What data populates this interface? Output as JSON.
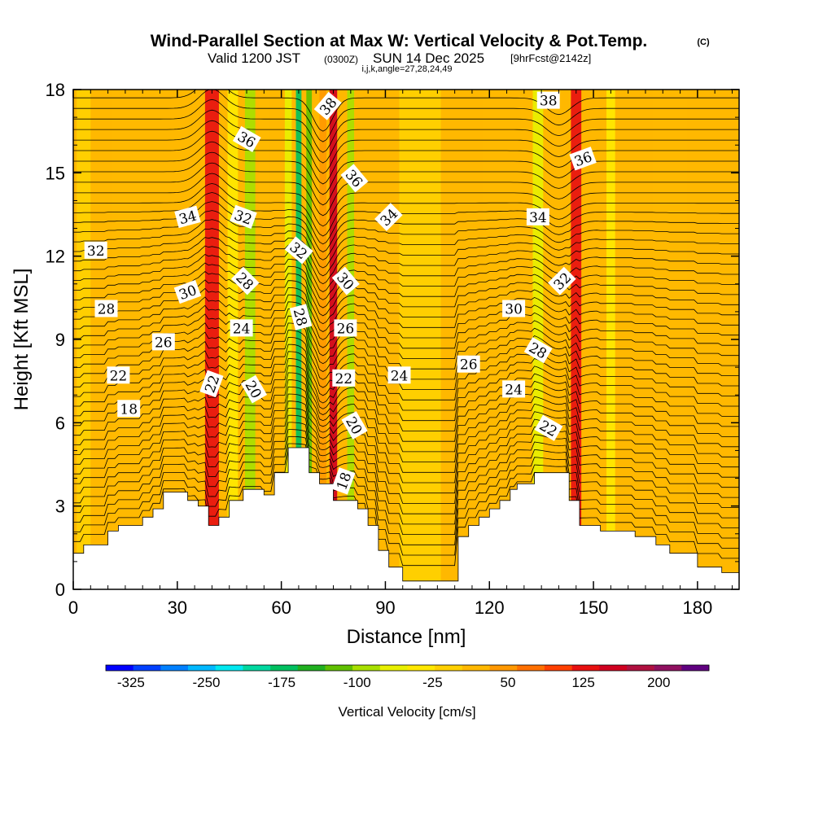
{
  "title": "Wind-Parallel Section at Max W: Vertical Velocity & Pot.Temp.",
  "copyright": "(C)",
  "subtitle_valid": "Valid 1200 JST",
  "subtitle_z": "(0300Z)",
  "subtitle_date": "SUN 14 Dec 2025",
  "subtitle_fcst": "[9hrFcst@2142z]",
  "subtitle_ijk": "i,j,k,angle=27,28,24,49",
  "chart_data": {
    "type": "heatmap",
    "xlabel": "Distance [nm]",
    "ylabel": "Height [Kft MSL]",
    "xlim": [
      0,
      192
    ],
    "ylim": [
      0,
      18
    ],
    "xticks": [
      "0",
      "30",
      "60",
      "90",
      "120",
      "150",
      "180"
    ],
    "xtick_values": [
      0,
      30,
      60,
      90,
      120,
      150,
      180
    ],
    "yticks": [
      "0",
      "3",
      "6",
      "9",
      "12",
      "15",
      "18"
    ],
    "ytick_values": [
      0,
      3,
      6,
      9,
      12,
      15,
      18
    ],
    "colorbar_title": "Vertical Velocity [cm/s]",
    "colorbar_ticks": [
      "-325",
      "-250",
      "-175",
      "-100",
      "-25",
      "50",
      "125",
      "200"
    ],
    "colorbar_colors": [
      "#0000ff",
      "#0040ff",
      "#0080ff",
      "#00b8ff",
      "#00e8f0",
      "#00d8a0",
      "#00c060",
      "#20b020",
      "#60c000",
      "#a8e000",
      "#e8f000",
      "#ffe800",
      "#ffd000",
      "#ffb800",
      "#ff9800",
      "#ff7000",
      "#ff4000",
      "#e81010",
      "#d00020",
      "#b01040",
      "#901060",
      "#600080"
    ],
    "colorbar_range": [
      -350,
      250
    ],
    "velocity_bands": [
      {
        "center_x": 3,
        "width": 4,
        "w": 0
      },
      {
        "center_x": 18,
        "width": 14,
        "w": 20
      },
      {
        "center_x": 40,
        "width": 4,
        "w": 140
      },
      {
        "center_x": 46,
        "width": 3,
        "w": -40
      },
      {
        "center_x": 51,
        "width": 3,
        "w": -80
      },
      {
        "center_x": 55,
        "width": 3,
        "w": 30
      },
      {
        "center_x": 62,
        "width": 2,
        "w": -70
      },
      {
        "center_x": 65,
        "width": 1.6,
        "w": -170
      },
      {
        "center_x": 68,
        "width": 1.6,
        "w": -110
      },
      {
        "center_x": 72,
        "width": 2,
        "w": 40
      },
      {
        "center_x": 75,
        "width": 2.2,
        "w": 160
      },
      {
        "center_x": 80,
        "width": 2,
        "w": -90
      },
      {
        "center_x": 84,
        "width": 3,
        "w": 20
      },
      {
        "center_x": 100,
        "width": 12,
        "w": 0
      },
      {
        "center_x": 122,
        "width": 8,
        "w": 10
      },
      {
        "center_x": 134,
        "width": 3,
        "w": -60
      },
      {
        "center_x": 145,
        "width": 3,
        "w": 120
      },
      {
        "center_x": 155,
        "width": 2.5,
        "w": -50
      },
      {
        "center_x": 172,
        "width": 10,
        "w": 25
      }
    ],
    "terrain": [
      [
        0,
        1.3
      ],
      [
        3,
        1.3
      ],
      [
        3,
        1.6
      ],
      [
        10,
        1.6
      ],
      [
        10,
        2.1
      ],
      [
        13,
        2.1
      ],
      [
        13,
        2.3
      ],
      [
        20,
        2.3
      ],
      [
        20,
        2.6
      ],
      [
        23,
        2.6
      ],
      [
        23,
        2.9
      ],
      [
        26,
        2.9
      ],
      [
        26,
        3.5
      ],
      [
        33,
        3.5
      ],
      [
        33,
        3.2
      ],
      [
        36,
        3.2
      ],
      [
        36,
        3.0
      ],
      [
        39,
        3.0
      ],
      [
        39,
        2.3
      ],
      [
        42,
        2.3
      ],
      [
        42,
        2.6
      ],
      [
        45,
        2.6
      ],
      [
        45,
        3.2
      ],
      [
        49,
        3.2
      ],
      [
        49,
        3.6
      ],
      [
        55,
        3.6
      ],
      [
        55,
        3.4
      ],
      [
        58,
        3.4
      ],
      [
        58,
        4.2
      ],
      [
        62,
        4.2
      ],
      [
        62,
        5.1
      ],
      [
        68,
        5.1
      ],
      [
        68,
        4.2
      ],
      [
        71,
        4.2
      ],
      [
        71,
        3.8
      ],
      [
        75,
        3.8
      ],
      [
        75,
        3.2
      ],
      [
        82,
        3.2
      ],
      [
        82,
        2.9
      ],
      [
        85,
        2.9
      ],
      [
        85,
        2.3
      ],
      [
        88,
        2.3
      ],
      [
        88,
        1.4
      ],
      [
        91,
        1.4
      ],
      [
        91,
        0.8
      ],
      [
        95,
        0.8
      ],
      [
        95,
        0.3
      ],
      [
        111,
        0.3
      ],
      [
        111,
        1.9
      ],
      [
        114,
        1.9
      ],
      [
        114,
        2.3
      ],
      [
        117,
        2.3
      ],
      [
        117,
        2.6
      ],
      [
        120,
        2.6
      ],
      [
        120,
        2.9
      ],
      [
        123,
        2.9
      ],
      [
        123,
        3.2
      ],
      [
        126,
        3.2
      ],
      [
        126,
        3.6
      ],
      [
        128,
        3.6
      ],
      [
        128,
        3.8
      ],
      [
        133,
        3.8
      ],
      [
        133,
        4.2
      ],
      [
        143,
        4.2
      ],
      [
        143,
        3.2
      ],
      [
        146,
        3.2
      ],
      [
        146,
        2.3
      ],
      [
        152,
        2.3
      ],
      [
        152,
        2.1
      ],
      [
        162,
        2.1
      ],
      [
        162,
        1.9
      ],
      [
        168,
        1.9
      ],
      [
        168,
        1.6
      ],
      [
        172,
        1.6
      ],
      [
        172,
        1.3
      ],
      [
        180,
        1.3
      ],
      [
        180,
        0.8
      ],
      [
        187,
        0.8
      ],
      [
        187,
        0.6
      ],
      [
        192,
        0.6
      ]
    ],
    "theta_levels": [
      18,
      20,
      22,
      24,
      26,
      28,
      30,
      32,
      34,
      36,
      38
    ],
    "contour_labels": [
      {
        "text": "18",
        "x": 16,
        "y": 6.5,
        "angle": 0
      },
      {
        "text": "18",
        "x": 78,
        "y": 3.9,
        "angle": -70
      },
      {
        "text": "20",
        "x": 52,
        "y": 7.2,
        "angle": 60
      },
      {
        "text": "20",
        "x": 81,
        "y": 5.9,
        "angle": 60
      },
      {
        "text": "22",
        "x": 13,
        "y": 7.7,
        "angle": 0
      },
      {
        "text": "22",
        "x": 40,
        "y": 7.4,
        "angle": -70
      },
      {
        "text": "22",
        "x": 78,
        "y": 7.6,
        "angle": 0
      },
      {
        "text": "22",
        "x": 137,
        "y": 5.8,
        "angle": 30
      },
      {
        "text": "24",
        "x": 48.5,
        "y": 9.4,
        "angle": 0
      },
      {
        "text": "24",
        "x": 94,
        "y": 7.7,
        "angle": 0
      },
      {
        "text": "24",
        "x": 127,
        "y": 7.2,
        "angle": 0
      },
      {
        "text": "26",
        "x": 26,
        "y": 8.9,
        "angle": 0
      },
      {
        "text": "26",
        "x": 78.5,
        "y": 9.4,
        "angle": 0
      },
      {
        "text": "26",
        "x": 114,
        "y": 8.1,
        "angle": 0
      },
      {
        "text": "28",
        "x": 9.5,
        "y": 10.1,
        "angle": 0
      },
      {
        "text": "28",
        "x": 49.5,
        "y": 11.1,
        "angle": 45
      },
      {
        "text": "28",
        "x": 65.5,
        "y": 9.8,
        "angle": 75
      },
      {
        "text": "28",
        "x": 134,
        "y": 8.6,
        "angle": 30
      },
      {
        "text": "30",
        "x": 33,
        "y": 10.7,
        "angle": -20
      },
      {
        "text": "30",
        "x": 78.5,
        "y": 11.1,
        "angle": 50
      },
      {
        "text": "30",
        "x": 127,
        "y": 10.1,
        "angle": 0
      },
      {
        "text": "32",
        "x": 6.5,
        "y": 12.2,
        "angle": 0
      },
      {
        "text": "32",
        "x": 49,
        "y": 13.4,
        "angle": 20
      },
      {
        "text": "32",
        "x": 65,
        "y": 12.2,
        "angle": 40
      },
      {
        "text": "32",
        "x": 141,
        "y": 11.1,
        "angle": -45
      },
      {
        "text": "34",
        "x": 33,
        "y": 13.4,
        "angle": -15
      },
      {
        "text": "34",
        "x": 91,
        "y": 13.4,
        "angle": -45
      },
      {
        "text": "34",
        "x": 134,
        "y": 13.4,
        "angle": 0
      },
      {
        "text": "36",
        "x": 50,
        "y": 16.2,
        "angle": 30
      },
      {
        "text": "36",
        "x": 81,
        "y": 14.8,
        "angle": 50
      },
      {
        "text": "36",
        "x": 147,
        "y": 15.5,
        "angle": -20
      },
      {
        "text": "38",
        "x": 73.5,
        "y": 17.4,
        "angle": -50
      },
      {
        "text": "38",
        "x": 137,
        "y": 17.6,
        "angle": 0
      }
    ]
  }
}
